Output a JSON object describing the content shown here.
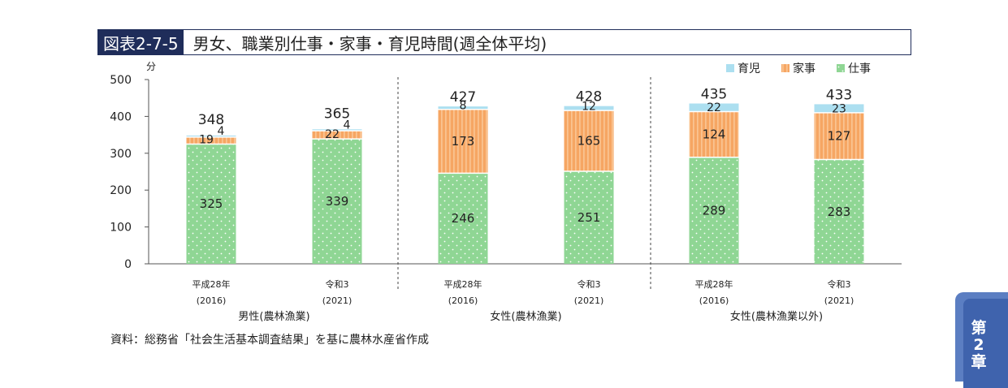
{
  "figure": {
    "id": "図表2-7-5",
    "title": "男女、職業別仕事・家事・育児時間(週全体平均)"
  },
  "source_note": "資料：総務省「社会生活基本調査結果」を基に農林水産省作成",
  "chapter_tab": {
    "line1": "第",
    "line2": "2",
    "line3": "章"
  },
  "colors": {
    "work": "#8fd694",
    "housework": "#f6a663",
    "childcare": "#acdff0",
    "frame": "#1f2d5a"
  },
  "chart_data": {
    "type": "bar",
    "stacked": true,
    "unit_label": "分",
    "ylim": [
      0,
      500
    ],
    "yticks": [
      0,
      100,
      200,
      300,
      400,
      500
    ],
    "legend": [
      "育児",
      "家事",
      "仕事"
    ],
    "legend_position": "top-right",
    "groups": [
      {
        "label": "男性(農林漁業)",
        "bars": [
          0,
          1
        ]
      },
      {
        "label": "女性(農林漁業)",
        "bars": [
          2,
          3
        ]
      },
      {
        "label": "女性(農林漁業以外)",
        "bars": [
          4,
          5
        ]
      }
    ],
    "categories": [
      {
        "era": "平成28年",
        "year": "(2016)"
      },
      {
        "era": "令和3",
        "year": "(2021)"
      },
      {
        "era": "平成28年",
        "year": "(2016)"
      },
      {
        "era": "令和3",
        "year": "(2021)"
      },
      {
        "era": "平成28年",
        "year": "(2016)"
      },
      {
        "era": "令和3",
        "year": "(2021)"
      }
    ],
    "series": [
      {
        "name": "仕事",
        "values": [
          325,
          339,
          246,
          251,
          289,
          283
        ]
      },
      {
        "name": "家事",
        "values": [
          19,
          22,
          173,
          165,
          124,
          127
        ]
      },
      {
        "name": "育児",
        "values": [
          4,
          4,
          8,
          12,
          22,
          23
        ]
      }
    ],
    "totals": [
      348,
      365,
      427,
      428,
      435,
      433
    ]
  }
}
